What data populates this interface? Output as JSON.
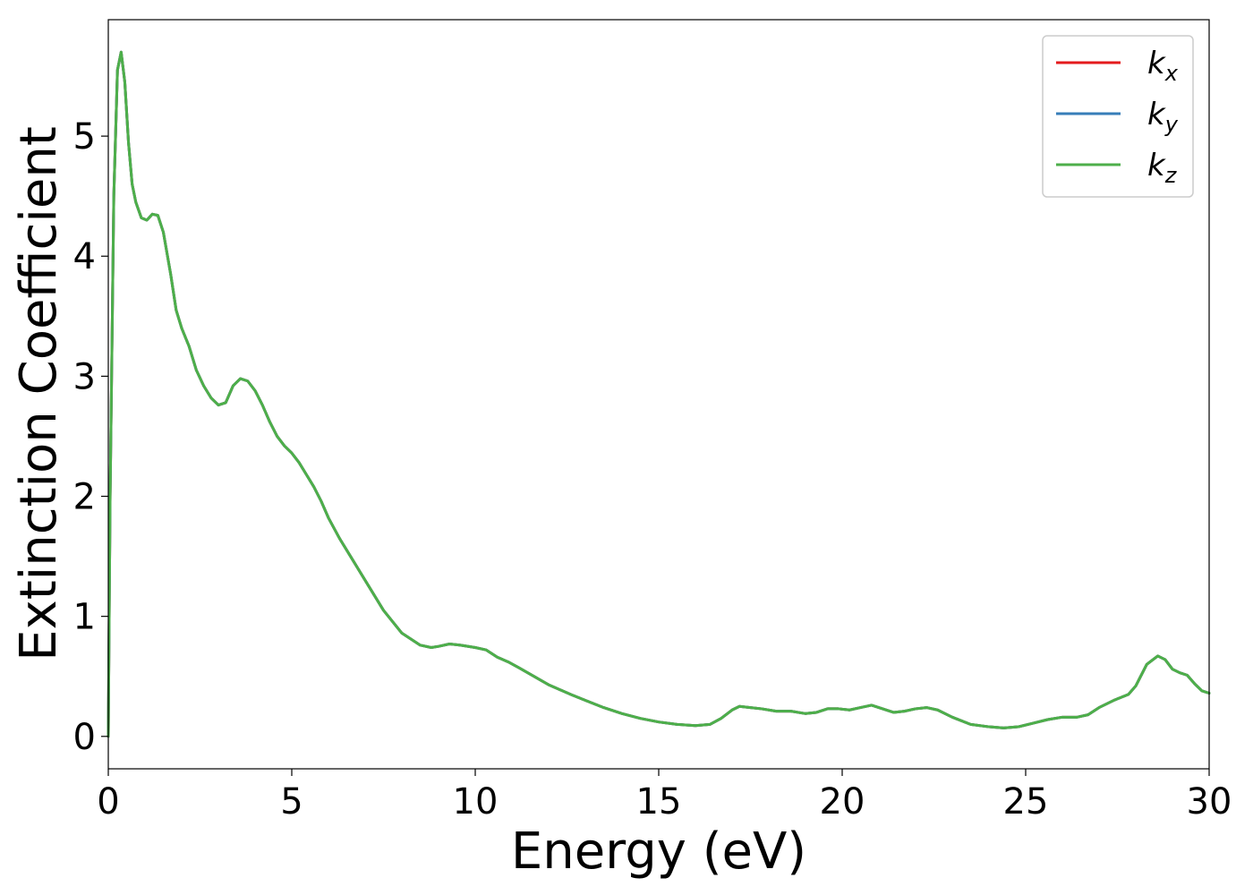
{
  "chart_data": {
    "type": "line",
    "title": "",
    "xlabel": "Energy (eV)",
    "ylabel": "Extinction Coefficient",
    "xlim": [
      0,
      30
    ],
    "ylim": [
      -0.27,
      5.97
    ],
    "xticks": [
      0,
      5,
      10,
      15,
      20,
      25,
      30
    ],
    "yticks": [
      0,
      1,
      2,
      3,
      4,
      5
    ],
    "grid": false,
    "legend_position": "top-right",
    "series": [
      {
        "name": "k",
        "subscript": "x",
        "color": "#e41a1c",
        "x": [
          0,
          0.05,
          0.15,
          0.25,
          0.35,
          0.45,
          0.55,
          0.65,
          0.75,
          0.9,
          1.05,
          1.2,
          1.35,
          1.5,
          1.7,
          1.85,
          2.0,
          2.2,
          2.4,
          2.6,
          2.8,
          3.0,
          3.2,
          3.4,
          3.6,
          3.8,
          4.0,
          4.2,
          4.4,
          4.6,
          4.8,
          5.0,
          5.2,
          5.4,
          5.6,
          5.8,
          6.0,
          6.3,
          6.6,
          7.0,
          7.5,
          8.0,
          8.5,
          8.8,
          9.0,
          9.3,
          9.6,
          10.0,
          10.3,
          10.6,
          10.9,
          11.2,
          11.6,
          12.0,
          12.3,
          12.6,
          13.0,
          13.5,
          14.0,
          14.5,
          15.0,
          15.5,
          16.0,
          16.4,
          16.7,
          17.0,
          17.2,
          17.5,
          17.8,
          18.2,
          18.6,
          19.0,
          19.3,
          19.6,
          19.9,
          20.2,
          20.5,
          20.8,
          21.1,
          21.4,
          21.7,
          22.0,
          22.3,
          22.6,
          23.0,
          23.5,
          24.0,
          24.4,
          24.8,
          25.2,
          25.6,
          26.0,
          26.4,
          26.7,
          27.0,
          27.4,
          27.8,
          28.0,
          28.3,
          28.6,
          28.8,
          29.0,
          29.2,
          29.4,
          29.6,
          29.8,
          30.0
        ],
        "y": [
          0.0,
          2.0,
          4.5,
          5.55,
          5.7,
          5.45,
          4.95,
          4.6,
          4.45,
          4.32,
          4.3,
          4.35,
          4.34,
          4.2,
          3.85,
          3.55,
          3.4,
          3.25,
          3.05,
          2.92,
          2.82,
          2.76,
          2.78,
          2.92,
          2.98,
          2.96,
          2.88,
          2.76,
          2.62,
          2.5,
          2.42,
          2.36,
          2.28,
          2.18,
          2.08,
          1.96,
          1.82,
          1.65,
          1.5,
          1.3,
          1.05,
          0.86,
          0.76,
          0.74,
          0.75,
          0.77,
          0.76,
          0.74,
          0.72,
          0.66,
          0.62,
          0.57,
          0.5,
          0.43,
          0.39,
          0.35,
          0.3,
          0.24,
          0.19,
          0.15,
          0.12,
          0.1,
          0.09,
          0.1,
          0.15,
          0.22,
          0.25,
          0.24,
          0.23,
          0.21,
          0.21,
          0.19,
          0.2,
          0.23,
          0.23,
          0.22,
          0.24,
          0.26,
          0.23,
          0.2,
          0.21,
          0.23,
          0.24,
          0.22,
          0.16,
          0.1,
          0.08,
          0.07,
          0.08,
          0.11,
          0.14,
          0.16,
          0.16,
          0.18,
          0.24,
          0.3,
          0.35,
          0.42,
          0.6,
          0.67,
          0.64,
          0.56,
          0.53,
          0.51,
          0.44,
          0.38,
          0.36
        ]
      },
      {
        "name": "k",
        "subscript": "y",
        "color": "#377eb8",
        "x": [
          0,
          0.05,
          0.15,
          0.25,
          0.35,
          0.45,
          0.55,
          0.65,
          0.75,
          0.9,
          1.05,
          1.2,
          1.35,
          1.5,
          1.7,
          1.85,
          2.0,
          2.2,
          2.4,
          2.6,
          2.8,
          3.0,
          3.2,
          3.4,
          3.6,
          3.8,
          4.0,
          4.2,
          4.4,
          4.6,
          4.8,
          5.0,
          5.2,
          5.4,
          5.6,
          5.8,
          6.0,
          6.3,
          6.6,
          7.0,
          7.5,
          8.0,
          8.5,
          8.8,
          9.0,
          9.3,
          9.6,
          10.0,
          10.3,
          10.6,
          10.9,
          11.2,
          11.6,
          12.0,
          12.3,
          12.6,
          13.0,
          13.5,
          14.0,
          14.5,
          15.0,
          15.5,
          16.0,
          16.4,
          16.7,
          17.0,
          17.2,
          17.5,
          17.8,
          18.2,
          18.6,
          19.0,
          19.3,
          19.6,
          19.9,
          20.2,
          20.5,
          20.8,
          21.1,
          21.4,
          21.7,
          22.0,
          22.3,
          22.6,
          23.0,
          23.5,
          24.0,
          24.4,
          24.8,
          25.2,
          25.6,
          26.0,
          26.4,
          26.7,
          27.0,
          27.4,
          27.8,
          28.0,
          28.3,
          28.6,
          28.8,
          29.0,
          29.2,
          29.4,
          29.6,
          29.8,
          30.0
        ],
        "y": [
          0.0,
          2.0,
          4.5,
          5.55,
          5.7,
          5.45,
          4.95,
          4.6,
          4.45,
          4.32,
          4.3,
          4.35,
          4.34,
          4.2,
          3.85,
          3.55,
          3.4,
          3.25,
          3.05,
          2.92,
          2.82,
          2.76,
          2.78,
          2.92,
          2.98,
          2.96,
          2.88,
          2.76,
          2.62,
          2.5,
          2.42,
          2.36,
          2.28,
          2.18,
          2.08,
          1.96,
          1.82,
          1.65,
          1.5,
          1.3,
          1.05,
          0.86,
          0.76,
          0.74,
          0.75,
          0.77,
          0.76,
          0.74,
          0.72,
          0.66,
          0.62,
          0.57,
          0.5,
          0.43,
          0.39,
          0.35,
          0.3,
          0.24,
          0.19,
          0.15,
          0.12,
          0.1,
          0.09,
          0.1,
          0.15,
          0.22,
          0.25,
          0.24,
          0.23,
          0.21,
          0.21,
          0.19,
          0.2,
          0.23,
          0.23,
          0.22,
          0.24,
          0.26,
          0.23,
          0.2,
          0.21,
          0.23,
          0.24,
          0.22,
          0.16,
          0.1,
          0.08,
          0.07,
          0.08,
          0.11,
          0.14,
          0.16,
          0.16,
          0.18,
          0.24,
          0.3,
          0.35,
          0.42,
          0.6,
          0.67,
          0.64,
          0.56,
          0.53,
          0.51,
          0.44,
          0.38,
          0.36
        ]
      },
      {
        "name": "k",
        "subscript": "z",
        "color": "#4daf4a",
        "x": [
          0,
          0.05,
          0.15,
          0.25,
          0.35,
          0.45,
          0.55,
          0.65,
          0.75,
          0.9,
          1.05,
          1.2,
          1.35,
          1.5,
          1.7,
          1.85,
          2.0,
          2.2,
          2.4,
          2.6,
          2.8,
          3.0,
          3.2,
          3.4,
          3.6,
          3.8,
          4.0,
          4.2,
          4.4,
          4.6,
          4.8,
          5.0,
          5.2,
          5.4,
          5.6,
          5.8,
          6.0,
          6.3,
          6.6,
          7.0,
          7.5,
          8.0,
          8.5,
          8.8,
          9.0,
          9.3,
          9.6,
          10.0,
          10.3,
          10.6,
          10.9,
          11.2,
          11.6,
          12.0,
          12.3,
          12.6,
          13.0,
          13.5,
          14.0,
          14.5,
          15.0,
          15.5,
          16.0,
          16.4,
          16.7,
          17.0,
          17.2,
          17.5,
          17.8,
          18.2,
          18.6,
          19.0,
          19.3,
          19.6,
          19.9,
          20.2,
          20.5,
          20.8,
          21.1,
          21.4,
          21.7,
          22.0,
          22.3,
          22.6,
          23.0,
          23.5,
          24.0,
          24.4,
          24.8,
          25.2,
          25.6,
          26.0,
          26.4,
          26.7,
          27.0,
          27.4,
          27.8,
          28.0,
          28.3,
          28.6,
          28.8,
          29.0,
          29.2,
          29.4,
          29.6,
          29.8,
          30.0
        ],
        "y": [
          0.0,
          2.0,
          4.5,
          5.55,
          5.7,
          5.45,
          4.95,
          4.6,
          4.45,
          4.32,
          4.3,
          4.35,
          4.34,
          4.2,
          3.85,
          3.55,
          3.4,
          3.25,
          3.05,
          2.92,
          2.82,
          2.76,
          2.78,
          2.92,
          2.98,
          2.96,
          2.88,
          2.76,
          2.62,
          2.5,
          2.42,
          2.36,
          2.28,
          2.18,
          2.08,
          1.96,
          1.82,
          1.65,
          1.5,
          1.3,
          1.05,
          0.86,
          0.76,
          0.74,
          0.75,
          0.77,
          0.76,
          0.74,
          0.72,
          0.66,
          0.62,
          0.57,
          0.5,
          0.43,
          0.39,
          0.35,
          0.3,
          0.24,
          0.19,
          0.15,
          0.12,
          0.1,
          0.09,
          0.1,
          0.15,
          0.22,
          0.25,
          0.24,
          0.23,
          0.21,
          0.21,
          0.19,
          0.2,
          0.23,
          0.23,
          0.22,
          0.24,
          0.26,
          0.23,
          0.2,
          0.21,
          0.23,
          0.24,
          0.22,
          0.16,
          0.1,
          0.08,
          0.07,
          0.08,
          0.11,
          0.14,
          0.16,
          0.16,
          0.18,
          0.24,
          0.3,
          0.35,
          0.42,
          0.6,
          0.67,
          0.64,
          0.56,
          0.53,
          0.51,
          0.44,
          0.38,
          0.36
        ]
      }
    ]
  }
}
